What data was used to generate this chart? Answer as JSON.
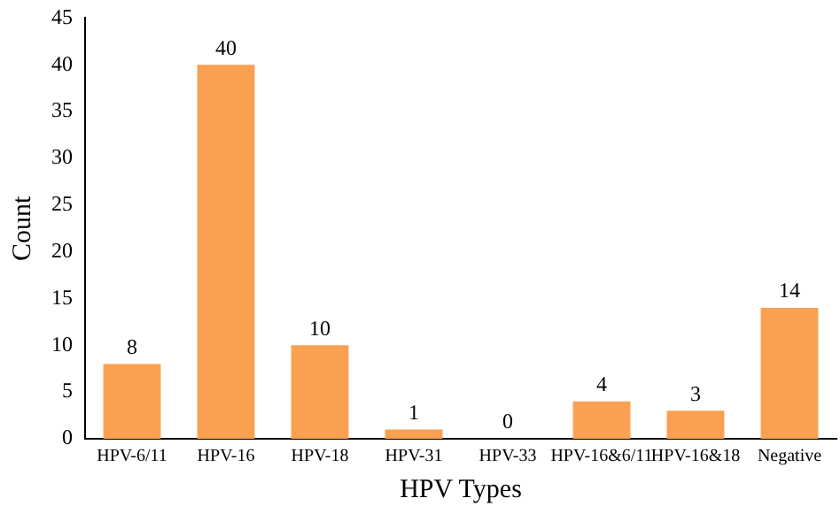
{
  "chart_data": {
    "type": "bar",
    "xlabel": "HPV Types",
    "ylabel": "Count",
    "categories": [
      "HPV-6/11",
      "HPV-16",
      "HPV-18",
      "HPV-31",
      "HPV-33",
      "HPV-16&6/11",
      "HPV-16&18",
      "Negative"
    ],
    "values": [
      8,
      40,
      10,
      1,
      0,
      4,
      3,
      14
    ],
    "color": "#f9a150",
    "ylim": [
      0,
      45
    ],
    "yticks": [
      0,
      5,
      10,
      15,
      20,
      25,
      30,
      35,
      40,
      45
    ],
    "grid": false,
    "legend": false,
    "data_labels": true
  }
}
